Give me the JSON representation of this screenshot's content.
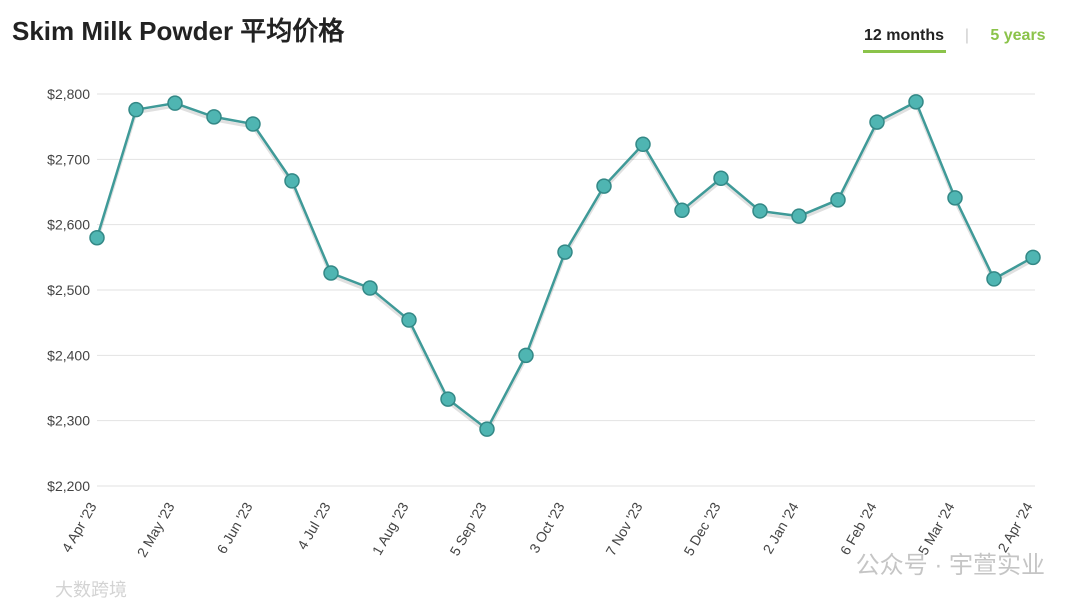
{
  "chart_data": {
    "type": "line",
    "title": "Skim Milk Powder 平均价格",
    "tabs": [
      "12 months",
      "5 years"
    ],
    "watermarks": [
      "公众号 · 宇萱实业",
      "大数跨境"
    ],
    "categories": [
      "4 Apr '23",
      null,
      "2 May '23",
      null,
      "6 Jun '23",
      null,
      "4 Jul '23",
      null,
      "1 Aug '23",
      null,
      "5 Sep '23",
      null,
      "3 Oct '23",
      null,
      "7 Nov '23",
      null,
      "5 Dec '23",
      null,
      "2 Jan '24",
      null,
      "6 Feb '24",
      null,
      "5 Mar '24",
      null,
      "2 Apr '24"
    ],
    "values": [
      2580,
      2776,
      2786,
      2765,
      2754,
      2667,
      2526,
      2503,
      2454,
      2333,
      2287,
      2400,
      2558,
      2659,
      2723,
      2622,
      2671,
      2621,
      2613,
      2638,
      2757,
      2788,
      2641,
      2517,
      2550
    ],
    "color": "#3f9a98",
    "ylim": [
      2200,
      2800
    ],
    "yticks": [
      {
        "value": 2200,
        "label": "$2,200"
      },
      {
        "value": 2300,
        "label": "$2,300"
      },
      {
        "value": 2400,
        "label": "$2,400"
      },
      {
        "value": 2500,
        "label": "$2,500"
      },
      {
        "value": 2600,
        "label": "$2,600"
      },
      {
        "value": 2700,
        "label": "$2,700"
      },
      {
        "value": 2800,
        "label": "$2,800"
      }
    ],
    "grid": true
  }
}
